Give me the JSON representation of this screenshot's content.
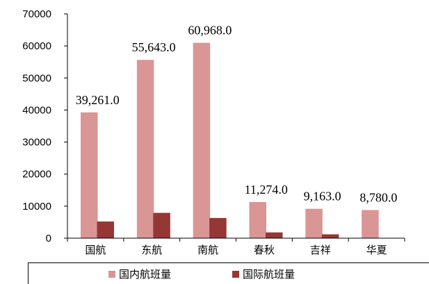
{
  "chart_data": {
    "type": "bar",
    "categories": [
      "国航",
      "东航",
      "南航",
      "春秋",
      "吉祥",
      "华夏"
    ],
    "series": [
      {
        "name": "国内航班量",
        "color": "#d99694",
        "values": [
          39261,
          55643,
          60968,
          11274,
          9163,
          8780
        ]
      },
      {
        "name": "国际航班量",
        "color": "#953735",
        "values": [
          5200,
          7900,
          6300,
          1800,
          1200,
          0
        ]
      }
    ],
    "data_labels": [
      "39,261.0",
      "55,643.0",
      "60,968.0",
      "11,274.0",
      "9,163.0",
      "8,780.0"
    ],
    "yticks": [
      "0",
      "10000",
      "20000",
      "30000",
      "40000",
      "50000",
      "60000",
      "70000"
    ],
    "ylim": [
      0,
      70000
    ],
    "ystep": 10000,
    "grid": false,
    "legend_position": "bottom",
    "title": "",
    "xlabel": "",
    "ylabel": ""
  }
}
